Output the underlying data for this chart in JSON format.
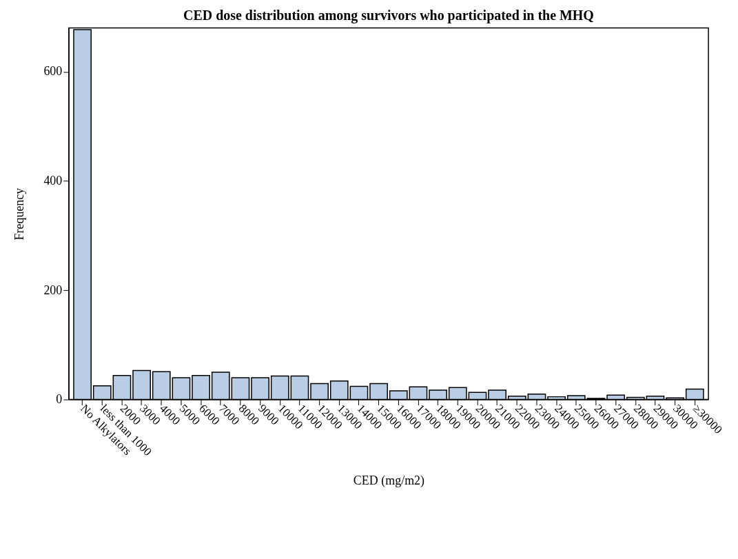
{
  "chart_data": {
    "type": "bar",
    "title": "CED dose distribution among survivors who participated in the MHQ",
    "xlabel": "CED (mg/m2)",
    "ylabel": "Frequency",
    "categories": [
      "No Alkylators",
      "less than 1000",
      "2000",
      "3000",
      "4000",
      "5000",
      "6000",
      "7000",
      "8000",
      "9000",
      "10000",
      "11000",
      "12000",
      "13000",
      "14000",
      "15000",
      "16000",
      "17000",
      "18000",
      "19000",
      "20000",
      "21000",
      "22000",
      "23000",
      "24000",
      "25000",
      "26000",
      "27000",
      "28000",
      "29000",
      "30000",
      "≥30000"
    ],
    "values": [
      677,
      25,
      44,
      53,
      51,
      40,
      44,
      50,
      40,
      40,
      43,
      43,
      29,
      34,
      24,
      29,
      16,
      23,
      17,
      22,
      13,
      17,
      6,
      10,
      5,
      7,
      2,
      8,
      4,
      6,
      3,
      19
    ],
    "color": "#b9cde5",
    "ylim": [
      0,
      680
    ],
    "yticks": [
      0,
      200,
      400,
      600
    ],
    "grid": false
  }
}
